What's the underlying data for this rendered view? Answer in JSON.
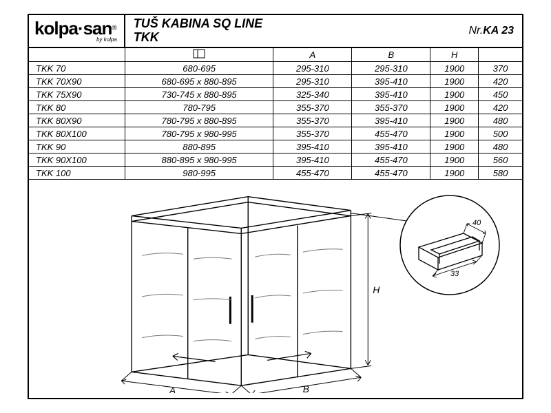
{
  "header": {
    "logo_main": "kolpa·san",
    "logo_reg": "®",
    "logo_sub": "by kolpa",
    "title_line1": "TUŠ KABINA SQ  LINE",
    "title_line2": "TKK",
    "doc_nr_label": "Nr.",
    "doc_nr": "KA 23"
  },
  "table": {
    "header_icon": "door-icon",
    "columns": [
      "",
      "",
      "A",
      "B",
      "H",
      ""
    ],
    "rows": [
      [
        "TKK 70",
        "680-695",
        "295-310",
        "295-310",
        "1900",
        "370"
      ],
      [
        "TKK 70X90",
        "680-695 x 880-895",
        "295-310",
        "395-410",
        "1900",
        "420"
      ],
      [
        "TKK 75X90",
        "730-745 x 880-895",
        "325-340",
        "395-410",
        "1900",
        "450"
      ],
      [
        "TKK 80",
        "780-795",
        "355-370",
        "355-370",
        "1900",
        "420"
      ],
      [
        "TKK 80X90",
        "780-795 x 880-895",
        "355-370",
        "395-410",
        "1900",
        "480"
      ],
      [
        "TKK 80X100",
        "780-795 x 980-995",
        "355-370",
        "455-470",
        "1900",
        "500"
      ],
      [
        "TKK 90",
        "880-895",
        "395-410",
        "395-410",
        "1900",
        "480"
      ],
      [
        "TKK 90X100",
        "880-895 x 980-995",
        "395-410",
        "455-470",
        "1900",
        "560"
      ],
      [
        "TKK 100",
        "980-995",
        "455-470",
        "455-470",
        "1900",
        "580"
      ]
    ]
  },
  "drawing": {
    "dim_labels": {
      "A": "A",
      "B": "B",
      "H": "H"
    },
    "detail": {
      "depth": "40",
      "width": "33"
    },
    "stroke": "#000000",
    "glass_stroke": "#555555"
  }
}
